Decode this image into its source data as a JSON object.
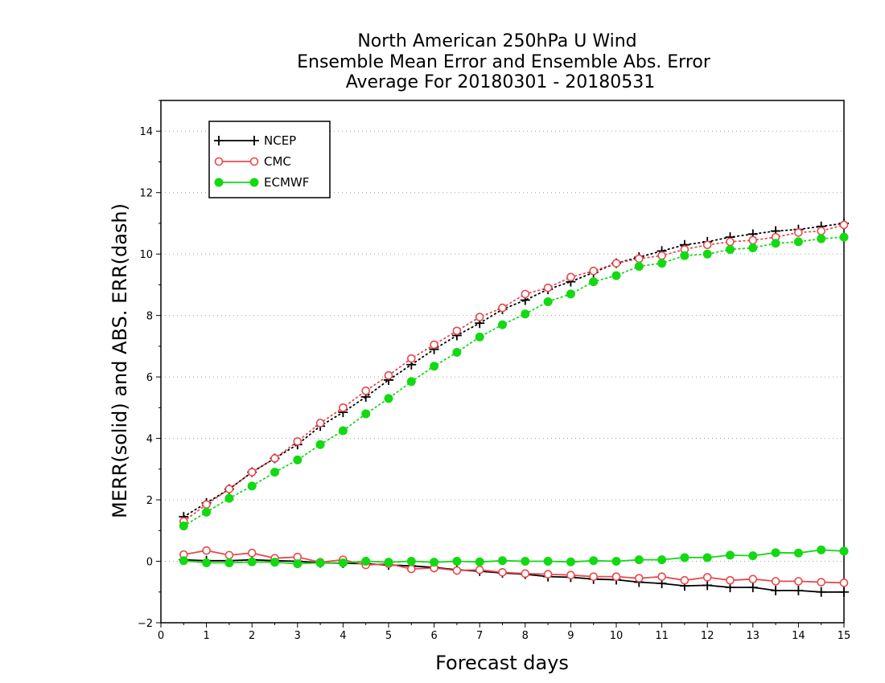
{
  "chart_data": {
    "type": "line",
    "title": [
      "North American 250hPa U Wind",
      "Ensemble Mean Error and Ensemble Abs. Error",
      "Average For 20180301 - 20180531"
    ],
    "xlabel": "Forecast days",
    "ylabel": "MERR(solid) and ABS. ERR(dash)",
    "xlim": [
      0,
      15
    ],
    "ylim": [
      -2,
      15
    ],
    "xticks": [
      0,
      1,
      2,
      3,
      4,
      5,
      6,
      7,
      8,
      9,
      10,
      11,
      12,
      13,
      14,
      15
    ],
    "yticks": [
      -2,
      0,
      2,
      4,
      6,
      8,
      10,
      12,
      14
    ],
    "grid": "horizontal dotted",
    "legend_position": "top-left",
    "x": [
      0.5,
      1,
      1.5,
      2,
      2.5,
      3,
      3.5,
      4,
      4.5,
      5,
      5.5,
      6,
      6.5,
      7,
      7.5,
      8,
      8.5,
      9,
      9.5,
      10,
      10.5,
      11,
      11.5,
      12,
      12.5,
      13,
      13.5,
      14,
      14.5,
      15
    ],
    "series": [
      {
        "name": "NCEP",
        "color": "#000000",
        "marker": "plus",
        "merr": [
          0.05,
          0.02,
          0.02,
          0.05,
          0.02,
          0.0,
          -0.05,
          -0.06,
          -0.08,
          -0.12,
          -0.15,
          -0.2,
          -0.28,
          -0.32,
          -0.38,
          -0.42,
          -0.5,
          -0.52,
          -0.58,
          -0.6,
          -0.68,
          -0.72,
          -0.8,
          -0.78,
          -0.85,
          -0.85,
          -0.95,
          -0.95,
          -1.0,
          -1.0
        ],
        "abs_err": [
          1.45,
          1.9,
          2.35,
          2.9,
          3.35,
          3.8,
          4.4,
          4.85,
          5.35,
          5.9,
          6.4,
          6.9,
          7.35,
          7.75,
          8.2,
          8.5,
          8.85,
          9.1,
          9.4,
          9.7,
          9.9,
          10.1,
          10.3,
          10.4,
          10.55,
          10.65,
          10.75,
          10.8,
          10.9,
          11.0
        ]
      },
      {
        "name": "CMC",
        "color": "#e8484d",
        "marker": "open-circle",
        "merr": [
          0.22,
          0.35,
          0.2,
          0.27,
          0.1,
          0.14,
          -0.03,
          0.05,
          -0.12,
          -0.08,
          -0.25,
          -0.22,
          -0.3,
          -0.28,
          -0.36,
          -0.4,
          -0.42,
          -0.45,
          -0.5,
          -0.5,
          -0.55,
          -0.5,
          -0.62,
          -0.52,
          -0.62,
          -0.58,
          -0.65,
          -0.65,
          -0.68,
          -0.7
        ],
        "abs_err": [
          1.3,
          1.85,
          2.35,
          2.9,
          3.35,
          3.9,
          4.5,
          5.0,
          5.55,
          6.05,
          6.6,
          7.05,
          7.5,
          7.95,
          8.25,
          8.7,
          8.9,
          9.25,
          9.45,
          9.7,
          9.85,
          9.95,
          10.15,
          10.3,
          10.4,
          10.45,
          10.55,
          10.7,
          10.75,
          10.95
        ]
      },
      {
        "name": "ECMWF",
        "color": "#12d912",
        "marker": "filled-circle",
        "merr": [
          0.02,
          -0.05,
          -0.05,
          -0.02,
          -0.03,
          -0.08,
          -0.05,
          -0.05,
          0.0,
          -0.03,
          0.0,
          -0.03,
          0.0,
          -0.02,
          0.02,
          0.0,
          0.0,
          -0.02,
          0.02,
          0.0,
          0.05,
          0.05,
          0.12,
          0.12,
          0.2,
          0.18,
          0.28,
          0.27,
          0.37,
          0.33
        ],
        "abs_err": [
          1.15,
          1.6,
          2.05,
          2.45,
          2.9,
          3.3,
          3.8,
          4.25,
          4.8,
          5.3,
          5.85,
          6.35,
          6.8,
          7.3,
          7.7,
          8.05,
          8.45,
          8.7,
          9.1,
          9.3,
          9.6,
          9.7,
          9.95,
          10.0,
          10.15,
          10.2,
          10.35,
          10.4,
          10.5,
          10.55
        ]
      }
    ]
  }
}
